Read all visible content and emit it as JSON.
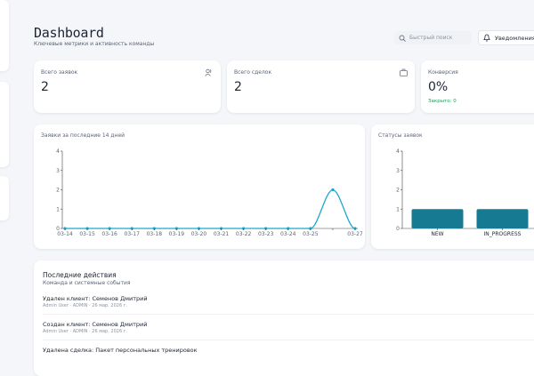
{
  "header": {
    "title": "Dashboard",
    "subtitle": "Ключевые метрики и активность команды",
    "search_placeholder": "Быстрый поиск",
    "notifications_button": "Уведомления"
  },
  "stats": [
    {
      "label": "Всего заявок",
      "value": 2
    },
    {
      "label": "Всего сделок",
      "value": 2
    },
    {
      "label": "Конверсия",
      "value": "0%",
      "note": "Закрыто: 0"
    }
  ],
  "chart_data": [
    {
      "type": "line",
      "title": "Заявки за последние 14 дней",
      "categories": [
        "03-14",
        "03-15",
        "03-16",
        "03-17",
        "03-18",
        "03-19",
        "03-20",
        "03-21",
        "03-22",
        "03-23",
        "03-24",
        "03-25",
        null,
        "03-27"
      ],
      "values": [
        0,
        0,
        0,
        0,
        0,
        0,
        0,
        0,
        0,
        0,
        0,
        0,
        2,
        0
      ],
      "color": "#1ea7cc",
      "ylim": [
        0,
        4
      ],
      "yticks": [
        0,
        1,
        2,
        3,
        4
      ]
    },
    {
      "type": "bar",
      "title": "Статусы заявок",
      "categories": [
        "NEW",
        "IN_PROGRESS"
      ],
      "values": [
        1,
        1
      ],
      "color": "#177a93",
      "ylim": [
        0,
        4
      ],
      "yticks": [
        0,
        1,
        2,
        3,
        4
      ]
    }
  ],
  "activity": {
    "title": "Последние действия",
    "subtitle": "Команда и системные события",
    "items": [
      {
        "title": "Удален клиент: Семенов Дмитрий",
        "meta": "Admin User · ADMIN · 26 мар. 2026 г."
      },
      {
        "title": "Создан клиент: Семенов Дмитрий",
        "meta": "Admin User · ADMIN · 26 мар. 2026 г."
      },
      {
        "title": "Удалена сделка: Пакет персональных тренировок"
      }
    ]
  }
}
